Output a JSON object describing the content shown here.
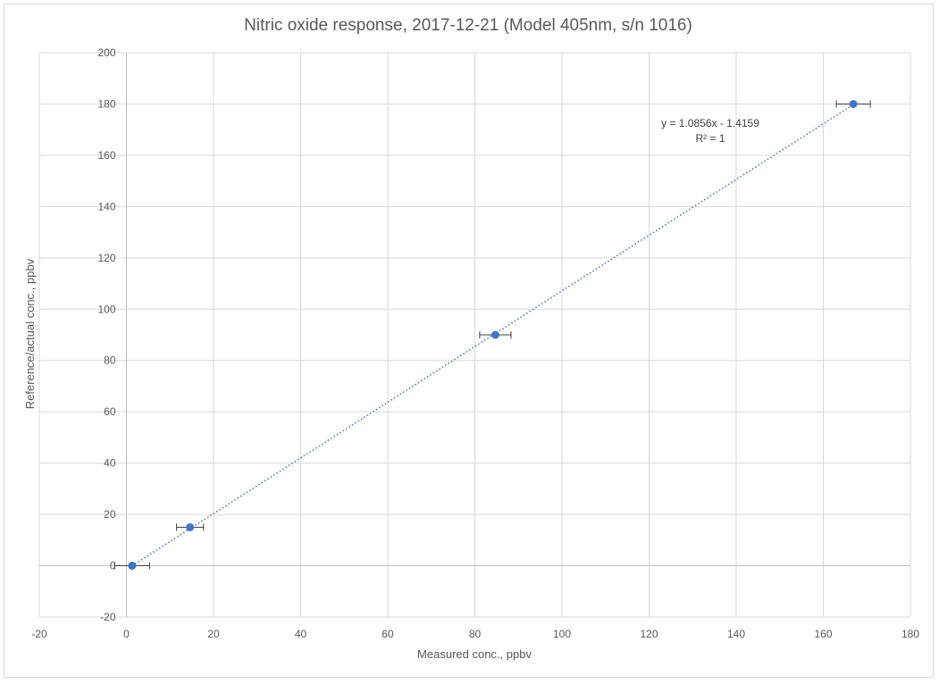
{
  "chart_data": {
    "type": "scatter",
    "title": "Nitric oxide response, 2017-12-21 (Model 405nm, s/n 1016)",
    "xlabel": "Measured conc., ppbv",
    "ylabel": "Reference/actual conc., ppbv",
    "xlim": [
      -20,
      180
    ],
    "ylim": [
      -20,
      200
    ],
    "xticks": [
      -20,
      0,
      20,
      40,
      60,
      80,
      100,
      120,
      140,
      160,
      180
    ],
    "yticks": [
      -20,
      0,
      20,
      40,
      60,
      80,
      100,
      120,
      140,
      160,
      180,
      200
    ],
    "grid": true,
    "legend": "none",
    "series": [
      {
        "x": [
          1.3,
          14.6,
          84.7,
          166.9
        ],
        "y": [
          0,
          15,
          90,
          180
        ],
        "x_error": [
          4.0,
          3.1,
          3.6,
          3.9
        ],
        "color": "#4472c4"
      }
    ],
    "trendline": {
      "type": "linear",
      "style": "dotted",
      "slope": 1.0856,
      "intercept": -1.4159,
      "x_range": [
        1.3,
        166.9
      ],
      "equation_label": "y = 1.0856x - 1.4159",
      "r2_label": "R² = 1",
      "color": "#4472c4"
    },
    "colors": {
      "grid": "#d9d9d9",
      "axis": "#bfbfbf",
      "text": "#595959"
    }
  }
}
